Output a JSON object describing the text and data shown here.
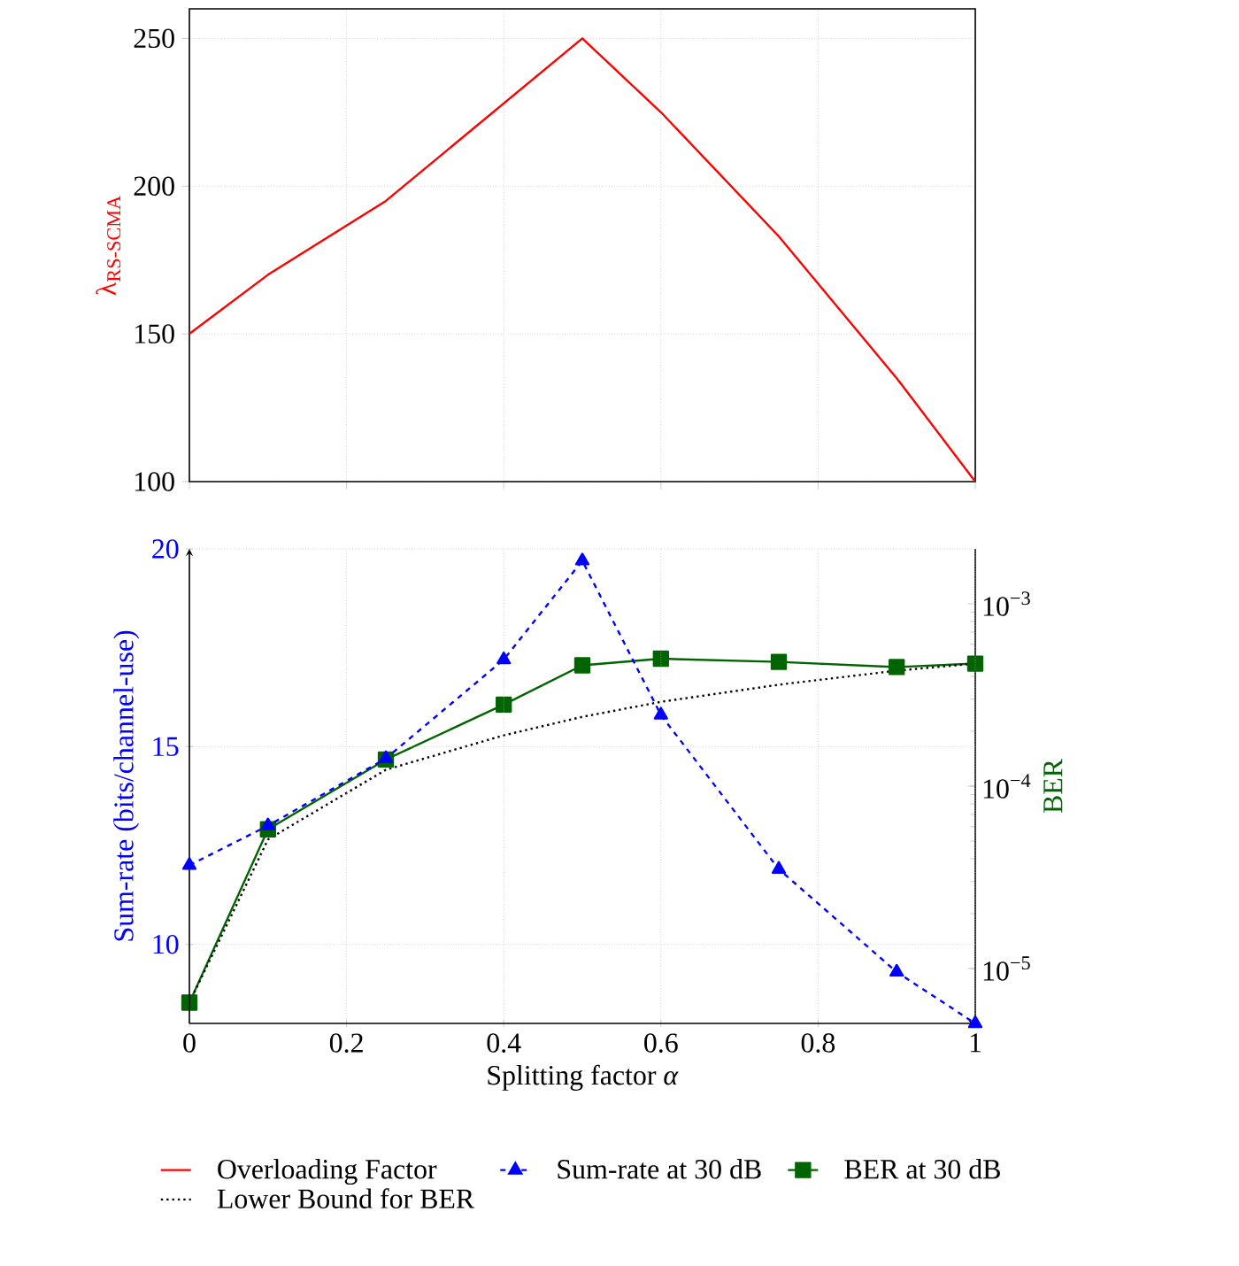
{
  "chart_data": [
    {
      "type": "line",
      "ylabel": "λ$_{RS-SCMA}$",
      "x": [
        0,
        0.1,
        0.25,
        0.5,
        0.6,
        0.75,
        0.9,
        1
      ],
      "series": [
        {
          "name": "Overloading Factor",
          "color": "#ff0000",
          "values": [
            150,
            170,
            195,
            250,
            225,
            183,
            135,
            100
          ],
          "marker": "none",
          "line_style": "solid"
        }
      ],
      "xlim": [
        0,
        1
      ],
      "xticks": [
        0,
        0.2,
        0.4,
        0.6,
        0.8,
        1
      ],
      "ylim": [
        100,
        260
      ],
      "yticks": [
        100,
        150,
        200,
        250
      ],
      "tick_labels": "y",
      "grid": true
    },
    {
      "type": "line",
      "xlabel": "Splitting factor *α*",
      "ylabel": "Sum-rate (bits/channel-use)",
      "y2label": "BER",
      "x": [
        0,
        0.1,
        0.25,
        0.4,
        0.5,
        0.6,
        0.75,
        0.9,
        1
      ],
      "series": [
        {
          "name": "Sum-rate at 30 dB",
          "color": "#0000ff",
          "values": [
            12.0,
            13.0,
            14.7,
            17.2,
            19.7,
            15.8,
            11.9,
            9.3,
            8.0
          ],
          "marker": "triangle",
          "line_style": "dashed"
        },
        {
          "name": "BER at 30 dB",
          "color": "#006400",
          "axis": "y2",
          "values": [
            6.5e-06,
            5.8e-05,
            0.00014,
            0.00028,
            0.00046,
            0.0005,
            0.00048,
            0.00045,
            0.00047
          ],
          "marker": "square",
          "line_style": "solid"
        },
        {
          "name": "Lower Bound for BER",
          "color": "#000000",
          "axis": "y2",
          "values": [
            6.5e-06,
            5.1e-05,
            0.000123,
            0.00019,
            0.00024,
            0.00029,
            0.00036,
            0.00043,
            0.00047
          ],
          "marker": "none",
          "line_style": "dotted"
        }
      ],
      "xlim": [
        0,
        1
      ],
      "xticks": [
        0,
        0.2,
        0.4,
        0.6,
        0.8,
        1
      ],
      "ylim": [
        8,
        20
      ],
      "yticks": [
        10,
        15,
        20
      ],
      "y2lim": [
        5e-06,
        0.002
      ],
      "y2ticks": [
        {
          "value": 1e-05,
          "label": "10$^{−5}$"
        },
        {
          "value": 0.0001,
          "label": "10$^{−4}$"
        },
        {
          "value": 0.001,
          "label": "10$^{−3}$"
        }
      ],
      "log": "y2",
      "grid": true,
      "legend": "bottom"
    }
  ]
}
